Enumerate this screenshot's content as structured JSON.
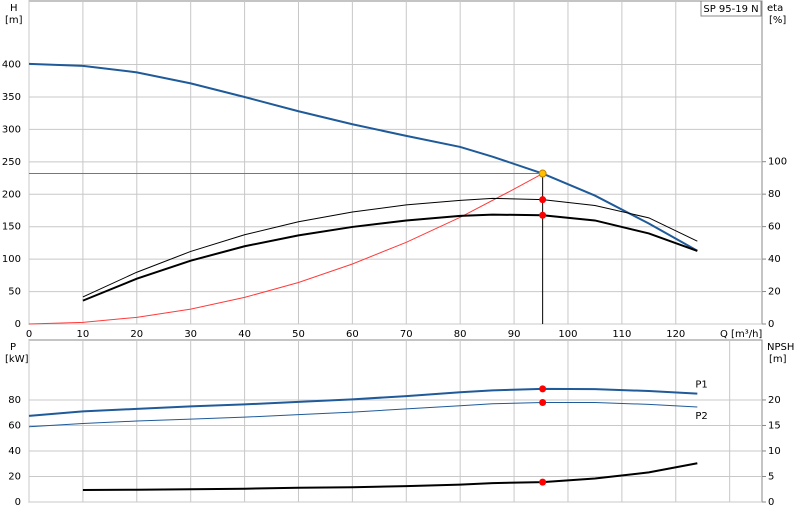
{
  "chart_data": [
    {
      "type": "line",
      "title": "SP 95-19 N",
      "ylabel": "H",
      "yunit": "[m]",
      "y2label": "eta",
      "y2unit": "[%]",
      "xlabel": "Q [m³/h]",
      "xlim": [
        0,
        136
      ],
      "xticks": [
        0,
        10,
        20,
        30,
        40,
        50,
        60,
        70,
        80,
        90,
        100,
        110,
        120
      ],
      "ylim": [
        0,
        498
      ],
      "yticks": [
        0,
        50,
        100,
        150,
        200,
        250,
        300,
        350,
        400
      ],
      "y2lim": [
        0,
        199
      ],
      "y2ticks": [
        0,
        20,
        40,
        60,
        80,
        100
      ],
      "grid": true,
      "series": [
        {
          "color": "#ff3b3b",
          "width": 1,
          "x": [
            0,
            10,
            20,
            30,
            40,
            50,
            60,
            70,
            80,
            90,
            95.3
          ],
          "values": [
            0,
            2.6,
            10.3,
            23,
            41,
            64,
            92.5,
            126,
            164.5,
            208,
            232
          ]
        },
        {
          "color": "#1f5a99",
          "width": 2,
          "x": [
            0,
            10,
            20,
            30,
            40,
            50,
            60,
            70,
            80,
            86,
            95.3,
            105,
            115,
            124
          ],
          "values": [
            401,
            398,
            388,
            371,
            350,
            328,
            308,
            290,
            273,
            258,
            232,
            198,
            155,
            113
          ]
        },
        {
          "color": "#000000",
          "width": 1,
          "axis": "y2",
          "x": [
            10,
            20,
            30,
            40,
            50,
            60,
            70,
            80,
            86,
            95.3,
            105,
            115,
            124
          ],
          "values": [
            16.7,
            31.9,
            44.7,
            55,
            63,
            69,
            73.4,
            76.2,
            77.4,
            76.6,
            73,
            65.4,
            51
          ]
        },
        {
          "color": "#000000",
          "width": 2,
          "axis": "y2",
          "x": [
            10,
            20,
            30,
            40,
            50,
            60,
            70,
            80,
            86,
            95.3,
            105,
            115,
            124
          ],
          "values": [
            14.4,
            27.9,
            39,
            47.9,
            54.6,
            59.8,
            63.8,
            66.6,
            67.4,
            67,
            63.8,
            55.8,
            45
          ]
        },
        {
          "color": "#ffc000",
          "marker": true,
          "guide": true,
          "x": [
            95.3
          ],
          "values": [
            232
          ]
        },
        {
          "color": "#ff0000",
          "marker": true,
          "axis": "y2",
          "x": [
            95.3,
            95.3
          ],
          "values": [
            76.6,
            67
          ]
        }
      ]
    },
    {
      "type": "line",
      "ylabel": "P",
      "yunit": "[kW]",
      "y2label": "NPSH",
      "y2unit": "[m]",
      "xlim": [
        0,
        136
      ],
      "xgrid": [
        0,
        10,
        20,
        30,
        40,
        50,
        60,
        70,
        80,
        90,
        100,
        110,
        120,
        130
      ],
      "ylim": [
        0,
        127
      ],
      "yticks": [
        0,
        20,
        40,
        60,
        80
      ],
      "y2lim": [
        0,
        31.75
      ],
      "y2ticks": [
        0,
        5,
        10,
        15,
        20
      ],
      "grid": true,
      "series": [
        {
          "name": "P1",
          "label_pos": "above",
          "color": "#1f5a99",
          "width": 2,
          "x": [
            0,
            10,
            20,
            30,
            40,
            50,
            60,
            70,
            80,
            86,
            95.3,
            105,
            115,
            124
          ],
          "values": [
            67.5,
            71,
            73,
            75,
            76.5,
            78.5,
            80.5,
            83,
            86,
            87.5,
            88.7,
            88.5,
            87,
            85
          ]
        },
        {
          "name": "P2",
          "label_pos": "below",
          "color": "#1f5a99",
          "width": 1,
          "x": [
            0,
            10,
            20,
            30,
            40,
            50,
            60,
            70,
            80,
            86,
            95.3,
            105,
            115,
            124
          ],
          "values": [
            59,
            61.5,
            63.5,
            65,
            66.5,
            68.5,
            70.5,
            73,
            75.5,
            77,
            78,
            78,
            76.5,
            74.5
          ]
        },
        {
          "color": "#000000",
          "width": 2,
          "axis": "y2",
          "x": [
            10,
            20,
            30,
            40,
            50,
            60,
            70,
            80,
            86,
            95.3,
            105,
            115,
            124
          ],
          "values": [
            2.35,
            2.4,
            2.5,
            2.6,
            2.8,
            2.9,
            3.1,
            3.4,
            3.7,
            3.9,
            4.6,
            5.8,
            7.6
          ]
        },
        {
          "color": "#ff0000",
          "marker": true,
          "x": [
            95.3,
            95.3
          ],
          "values": [
            88.7,
            78
          ]
        },
        {
          "color": "#ff0000",
          "marker": true,
          "axis": "y2",
          "x": [
            95.3
          ],
          "values": [
            3.9
          ]
        }
      ]
    }
  ]
}
